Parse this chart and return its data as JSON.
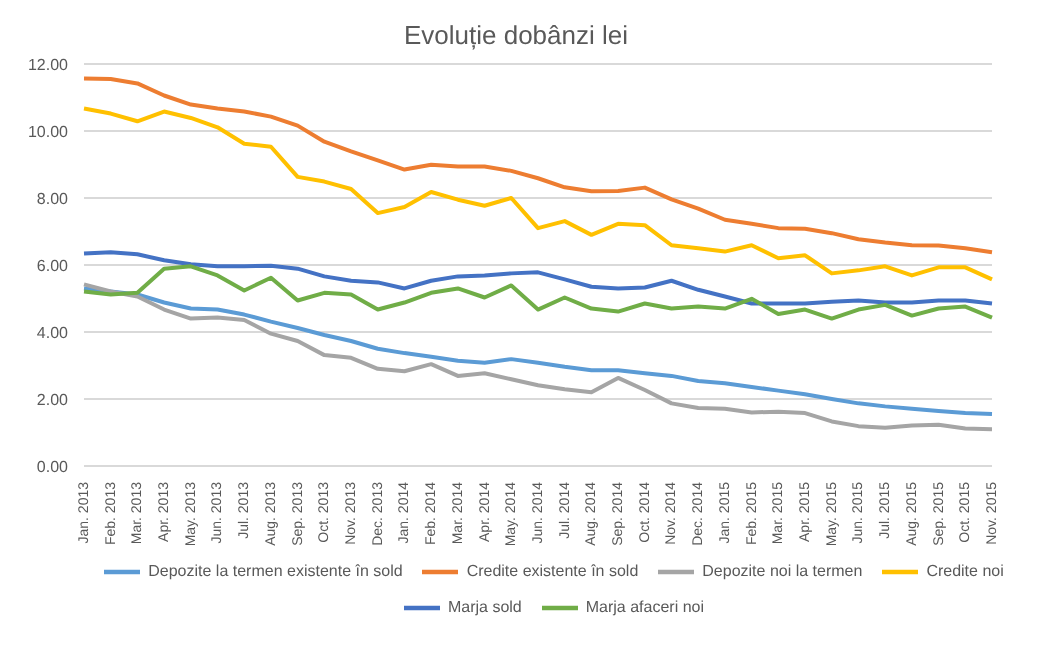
{
  "chart_data": {
    "type": "line",
    "title": "Evoluție dobânzi lei",
    "categories": [
      "Jan. 2013",
      "Feb. 2013",
      "Mar. 2013",
      "Apr. 2013",
      "May. 2013",
      "Jun. 2013",
      "Jul. 2013",
      "Aug. 2013",
      "Sep. 2013",
      "Oct. 2013",
      "Nov. 2013",
      "Dec. 2013",
      "Jan. 2014",
      "Feb. 2014",
      "Mar. 2014",
      "Apr. 2014",
      "May. 2014",
      "Jun. 2014",
      "Jul. 2014",
      "Aug. 2014",
      "Sep. 2014",
      "Oct. 2014",
      "Nov. 2014",
      "Dec. 2014",
      "Jan. 2015",
      "Feb. 2015",
      "Mar. 2015",
      "Apr. 2015",
      "May. 2015",
      "Jun. 2015",
      "Jul. 2015",
      "Aug. 2015",
      "Sep. 2015",
      "Oct. 2015",
      "Nov. 2015"
    ],
    "series": [
      {
        "name": "Depozite la termen existente în sold",
        "color": "#5b9bd5",
        "values": [
          5.3,
          5.21,
          5.12,
          4.88,
          4.7,
          4.67,
          4.52,
          4.31,
          4.12,
          3.91,
          3.73,
          3.5,
          3.37,
          3.26,
          3.14,
          3.08,
          3.19,
          3.08,
          2.96,
          2.86,
          2.86,
          2.77,
          2.69,
          2.54,
          2.47,
          2.36,
          2.25,
          2.14,
          2.0,
          1.87,
          1.78,
          1.71,
          1.64,
          1.58,
          1.55
        ]
      },
      {
        "name": "Credite existente în sold",
        "color": "#ed7d31",
        "values": [
          11.57,
          11.55,
          11.42,
          11.06,
          10.79,
          10.67,
          10.58,
          10.43,
          10.16,
          9.68,
          9.39,
          9.12,
          8.85,
          8.99,
          8.94,
          8.94,
          8.81,
          8.59,
          8.32,
          8.2,
          8.21,
          8.31,
          7.96,
          7.68,
          7.35,
          7.23,
          7.1,
          7.08,
          6.95,
          6.77,
          6.67,
          6.59,
          6.58,
          6.5,
          6.38
        ]
      },
      {
        "name": "Depozite noi la termen",
        "color": "#a5a5a5",
        "values": [
          5.42,
          5.21,
          5.06,
          4.67,
          4.4,
          4.43,
          4.36,
          3.95,
          3.73,
          3.31,
          3.23,
          2.9,
          2.83,
          3.04,
          2.69,
          2.77,
          2.59,
          2.41,
          2.29,
          2.2,
          2.63,
          2.27,
          1.87,
          1.73,
          1.71,
          1.6,
          1.62,
          1.58,
          1.33,
          1.19,
          1.14,
          1.21,
          1.23,
          1.12,
          1.1
        ]
      },
      {
        "name": "Credite noi",
        "color": "#ffc000",
        "values": [
          10.67,
          10.52,
          10.29,
          10.58,
          10.39,
          10.11,
          9.62,
          9.53,
          8.63,
          8.49,
          8.27,
          7.55,
          7.73,
          8.18,
          7.95,
          7.77,
          8.0,
          7.1,
          7.31,
          6.9,
          7.23,
          7.19,
          6.59,
          6.5,
          6.4,
          6.59,
          6.2,
          6.29,
          5.75,
          5.84,
          5.96,
          5.69,
          5.93,
          5.93,
          5.57
        ]
      },
      {
        "name": "Marja sold",
        "color": "#4472c4",
        "values": [
          6.34,
          6.38,
          6.32,
          6.14,
          6.02,
          5.96,
          5.96,
          5.98,
          5.89,
          5.66,
          5.53,
          5.48,
          5.3,
          5.53,
          5.66,
          5.69,
          5.75,
          5.78,
          5.57,
          5.35,
          5.3,
          5.33,
          5.53,
          5.26,
          5.06,
          4.85,
          4.85,
          4.85,
          4.9,
          4.94,
          4.88,
          4.88,
          4.94,
          4.94,
          4.85
        ]
      },
      {
        "name": "Marja afaceri noi",
        "color": "#70ad47",
        "values": [
          5.21,
          5.12,
          5.17,
          5.89,
          5.96,
          5.69,
          5.24,
          5.62,
          4.94,
          5.17,
          5.12,
          4.67,
          4.88,
          5.17,
          5.3,
          5.03,
          5.39,
          4.67,
          5.03,
          4.7,
          4.61,
          4.85,
          4.7,
          4.76,
          4.7,
          4.99,
          4.54,
          4.67,
          4.4,
          4.67,
          4.81,
          4.49,
          4.7,
          4.76,
          4.43
        ]
      }
    ],
    "ylim": [
      0,
      12
    ],
    "yticks": [
      {
        "value": 0,
        "label": "0.00"
      },
      {
        "value": 2,
        "label": "2.00"
      },
      {
        "value": 4,
        "label": "4.00"
      },
      {
        "value": 6,
        "label": "6.00"
      },
      {
        "value": 8,
        "label": "8.00"
      },
      {
        "value": 10,
        "label": "10.00"
      },
      {
        "value": 12,
        "label": "12.00"
      }
    ],
    "grid": "y",
    "legend": "bottom",
    "marker": "none",
    "line_style": "solid"
  }
}
